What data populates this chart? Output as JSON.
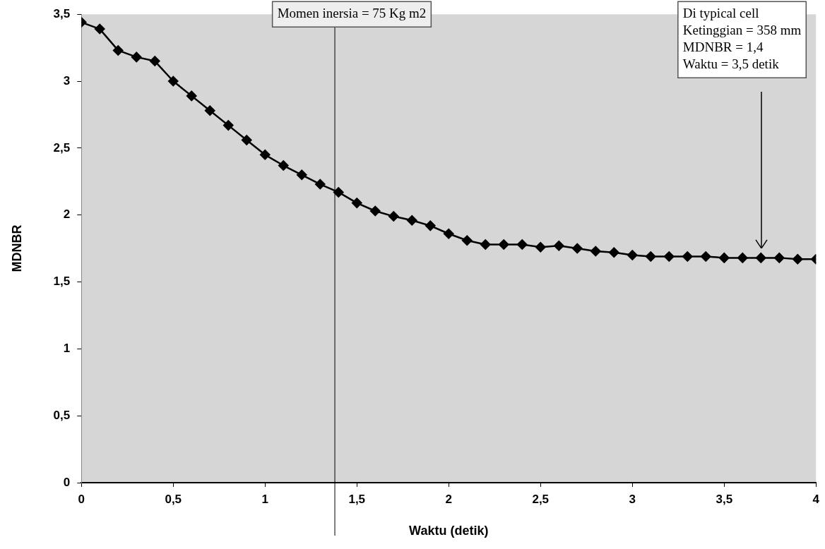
{
  "chart_data": {
    "type": "line",
    "xlabel": "Waktu (detik)",
    "ylabel": "MDNBR",
    "x": [
      0,
      0.1,
      0.2,
      0.3,
      0.4,
      0.5,
      0.6,
      0.7,
      0.8,
      0.9,
      1,
      1.1,
      1.2,
      1.3,
      1.4,
      1.5,
      1.6,
      1.7,
      1.8,
      1.9,
      2,
      2.1,
      2.2,
      2.3,
      2.4,
      2.5,
      2.6,
      2.7,
      2.8,
      2.9,
      3,
      3.1,
      3.2,
      3.3,
      3.4,
      3.5,
      3.6,
      3.7,
      3.8,
      3.9,
      4
    ],
    "series": [
      {
        "color": "#000000",
        "values": [
          3.44,
          3.39,
          3.23,
          3.18,
          3.15,
          3.0,
          2.89,
          2.78,
          2.67,
          2.56,
          2.45,
          2.37,
          2.3,
          2.23,
          2.17,
          2.09,
          2.03,
          1.99,
          1.96,
          1.92,
          1.86,
          1.81,
          1.78,
          1.78,
          1.78,
          1.76,
          1.77,
          1.75,
          1.73,
          1.72,
          1.7,
          1.69,
          1.69,
          1.69,
          1.69,
          1.68,
          1.68,
          1.68,
          1.68,
          1.67,
          1.67
        ]
      }
    ],
    "xlim": [
      0,
      4
    ],
    "xticks": [
      0,
      {
        "value": 0.5,
        "label": "0,5"
      },
      1,
      {
        "value": 1.5,
        "label": "1,5"
      },
      2,
      {
        "value": 2.5,
        "label": "2,5"
      },
      3,
      {
        "value": 3.5,
        "label": "3,5"
      },
      4
    ],
    "ylim": [
      0,
      3.5
    ],
    "yticks": [
      0,
      {
        "value": 0.5,
        "label": "0,5"
      },
      1,
      {
        "value": 1.5,
        "label": "1,5"
      },
      2,
      {
        "value": 2.5,
        "label": "2,5"
      },
      3,
      {
        "value": 3.5,
        "label": "3,5"
      }
    ],
    "grid": false,
    "legend": false,
    "marker": "diamond",
    "line_style": "solid",
    "ref_lines": [
      {
        "axis": "x",
        "value": 1.38,
        "color": "#000000"
      }
    ],
    "annotations": [
      "Momen inersia = 75 Kg m2",
      "Di typical cell\nKetinggian = 358 mm\nMDNBR = 1,4\nWaktu = 3,5 detik"
    ]
  }
}
